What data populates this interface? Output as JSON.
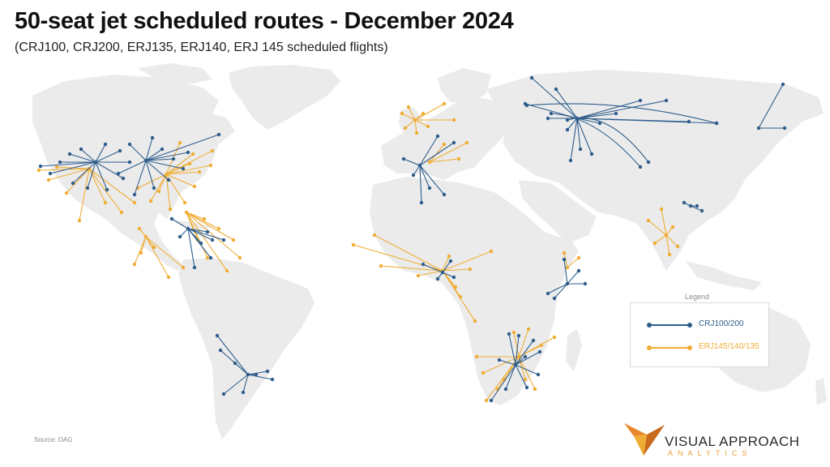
{
  "title": "50-seat jet scheduled routes - December 2024",
  "subtitle": "(CRJ100, CRJ200, ERJ135, ERJ140, ERJ 145 scheduled flights)",
  "legend": {
    "title": "Legend",
    "items": [
      {
        "label": "CRJ100/200",
        "color": "#2e5d8c"
      },
      {
        "label": "ERJ145/140/135",
        "color": "#f0ad35"
      }
    ]
  },
  "source": "Source: OAG",
  "brand": {
    "name": "VISUAL APPROACH",
    "sub": "ANALYTICS"
  },
  "colors": {
    "land": "#ebebeb",
    "crj": "#2e5d8c",
    "erj": "#f0ad35",
    "logo_orange": "#e8862a"
  }
}
